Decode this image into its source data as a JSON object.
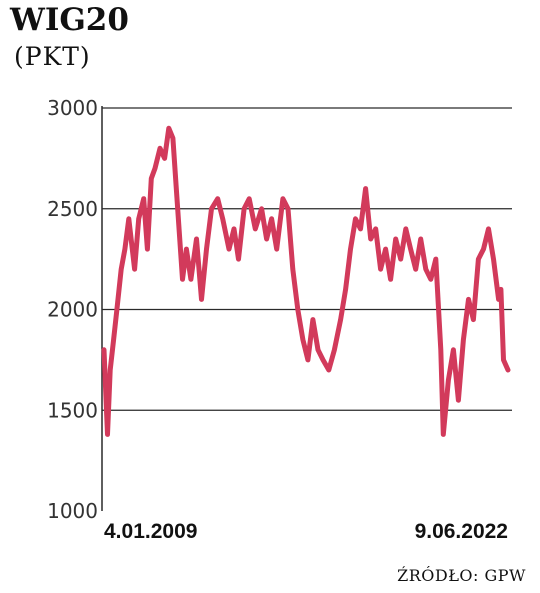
{
  "header": {
    "title": "WIG20",
    "unit": "(PKT)"
  },
  "footer": {
    "source": "ŹRÓDŁO: GPW"
  },
  "chart_data": {
    "type": "line",
    "title": "WIG20",
    "ylabel": "(PKT)",
    "ylim": [
      1000,
      3000
    ],
    "yticks": [
      1000,
      1500,
      2000,
      2500,
      3000
    ],
    "x_tick_labels": [
      "4.01.2009",
      "9.06.2022"
    ],
    "grid": "horizontal",
    "line_color": "#d23a5b",
    "series": [
      {
        "x": [
          "2009-01-04",
          "2009-02-15",
          "2009-03-20",
          "2009-05-01",
          "2009-06-10",
          "2009-08-01",
          "2009-09-15",
          "2009-11-01",
          "2010-01-10",
          "2010-03-01",
          "2010-05-01",
          "2010-06-15",
          "2010-08-01",
          "2010-09-15",
          "2010-11-15",
          "2011-01-10",
          "2011-03-01",
          "2011-04-20",
          "2011-06-01",
          "2011-08-15",
          "2011-10-01",
          "2011-11-25",
          "2012-02-01",
          "2012-04-01",
          "2012-06-01",
          "2012-08-01",
          "2012-10-15",
          "2012-12-15",
          "2013-03-01",
          "2013-05-01",
          "2013-06-25",
          "2013-09-01",
          "2013-11-01",
          "2014-01-15",
          "2014-04-01",
          "2014-06-01",
          "2014-08-01",
          "2014-10-01",
          "2014-12-15",
          "2015-02-15",
          "2015-04-15",
          "2015-06-15",
          "2015-08-15",
          "2015-10-15",
          "2015-12-15",
          "2016-02-15",
          "2016-04-15",
          "2016-06-25",
          "2016-09-01",
          "2016-11-15",
          "2017-01-15",
          "2017-03-15",
          "2017-05-15",
          "2017-07-15",
          "2017-09-15",
          "2017-11-15",
          "2018-01-15",
          "2018-03-15",
          "2018-05-15",
          "2018-07-15",
          "2018-09-15",
          "2018-11-15",
          "2019-01-15",
          "2019-03-15",
          "2019-05-15",
          "2019-07-15",
          "2019-09-15",
          "2019-11-15",
          "2020-01-15",
          "2020-03-15",
          "2020-04-15",
          "2020-06-15",
          "2020-08-15",
          "2020-10-15",
          "2020-12-15",
          "2021-02-15",
          "2021-04-15",
          "2021-06-15",
          "2021-08-15",
          "2021-10-15",
          "2021-12-15",
          "2022-02-15",
          "2022-03-15",
          "2022-04-15",
          "2022-06-09"
        ],
        "y": [
          1800,
          1380,
          1700,
          1850,
          2000,
          2200,
          2300,
          2450,
          2200,
          2450,
          2550,
          2300,
          2650,
          2700,
          2800,
          2750,
          2900,
          2850,
          2600,
          2150,
          2300,
          2150,
          2350,
          2050,
          2300,
          2500,
          2550,
          2450,
          2300,
          2400,
          2250,
          2500,
          2550,
          2400,
          2500,
          2350,
          2450,
          2300,
          2550,
          2500,
          2200,
          2000,
          1850,
          1750,
          1950,
          1800,
          1750,
          1700,
          1800,
          1950,
          2100,
          2300,
          2450,
          2400,
          2600,
          2350,
          2400,
          2200,
          2300,
          2150,
          2350,
          2250,
          2400,
          2300,
          2200,
          2350,
          2200,
          2150,
          2250,
          1800,
          1380,
          1650,
          1800,
          1550,
          1850,
          2050,
          1950,
          2250,
          2300,
          2400,
          2250,
          2050,
          2100,
          1750,
          1700
        ]
      }
    ]
  }
}
